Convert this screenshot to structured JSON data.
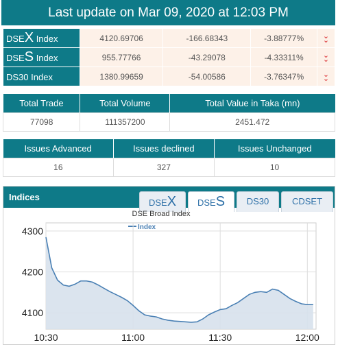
{
  "banner": {
    "text": "Last update on Mar 09, 2020 at 12:03 PM"
  },
  "indexes": [
    {
      "prefix": "DSE",
      "big": "X",
      "suffix": " Index",
      "value": "4120.69706",
      "change": "-166.68343",
      "percent": "-3.88777%"
    },
    {
      "prefix": "DSE",
      "big": "S",
      "suffix": " Index",
      "value": "955.77766",
      "change": "-43.29078",
      "percent": "-4.33311%"
    },
    {
      "prefix": "DS30",
      "big": "",
      "suffix": " Index",
      "value": "1380.99659",
      "change": "-54.00586",
      "percent": "-3.76347%"
    }
  ],
  "trade": {
    "headers": [
      "Total Trade",
      "Total Volume",
      "Total Value in Taka (mn)"
    ],
    "values": [
      "77098",
      "111357200",
      "2451.472"
    ]
  },
  "issues": {
    "headers": [
      "Issues Advanced",
      "Issues declined",
      "Issues Unchanged"
    ],
    "values": [
      "16",
      "327",
      "10"
    ]
  },
  "panel": {
    "title": "Indices",
    "tabs": [
      {
        "pre": "DSE",
        "big": "X"
      },
      {
        "pre": "DSE",
        "big": "S"
      },
      {
        "pre": "DS30",
        "big": ""
      },
      {
        "pre": "CDSET",
        "big": ""
      }
    ],
    "active_tab": 1
  },
  "chart_data": {
    "type": "area",
    "title": "DSE Broad Index",
    "series": [
      {
        "name": "Index",
        "x": [
          "10:30",
          "10:32",
          "10:34",
          "10:36",
          "10:38",
          "10:40",
          "10:42",
          "10:44",
          "10:46",
          "10:48",
          "10:50",
          "10:52",
          "10:54",
          "10:56",
          "10:58",
          "11:00",
          "11:02",
          "11:04",
          "11:06",
          "11:08",
          "11:10",
          "11:12",
          "11:14",
          "11:16",
          "11:18",
          "11:20",
          "11:22",
          "11:24",
          "11:26",
          "11:28",
          "11:30",
          "11:32",
          "11:34",
          "11:36",
          "11:38",
          "11:40",
          "11:42",
          "11:44",
          "11:46",
          "11:48",
          "11:50",
          "11:52",
          "11:54",
          "11:56",
          "11:58",
          "12:00",
          "12:02"
        ],
        "values": [
          4285,
          4210,
          4180,
          4168,
          4165,
          4170,
          4178,
          4178,
          4175,
          4168,
          4160,
          4152,
          4145,
          4138,
          4130,
          4118,
          4105,
          4095,
          4092,
          4090,
          4085,
          4082,
          4080,
          4079,
          4078,
          4077,
          4078,
          4085,
          4095,
          4102,
          4108,
          4110,
          4118,
          4125,
          4135,
          4145,
          4150,
          4152,
          4150,
          4158,
          4155,
          4145,
          4135,
          4128,
          4122,
          4120,
          4120
        ]
      }
    ],
    "x_ticks": [
      "10:30",
      "11:00",
      "11:30",
      "12:00"
    ],
    "y_ticks": [
      4100,
      4200,
      4300
    ],
    "ylim": [
      4060,
      4320
    ],
    "legend": "top-left",
    "grid": true,
    "colors": {
      "line": "#4a80b4",
      "fill": "#d7e1ec"
    }
  }
}
